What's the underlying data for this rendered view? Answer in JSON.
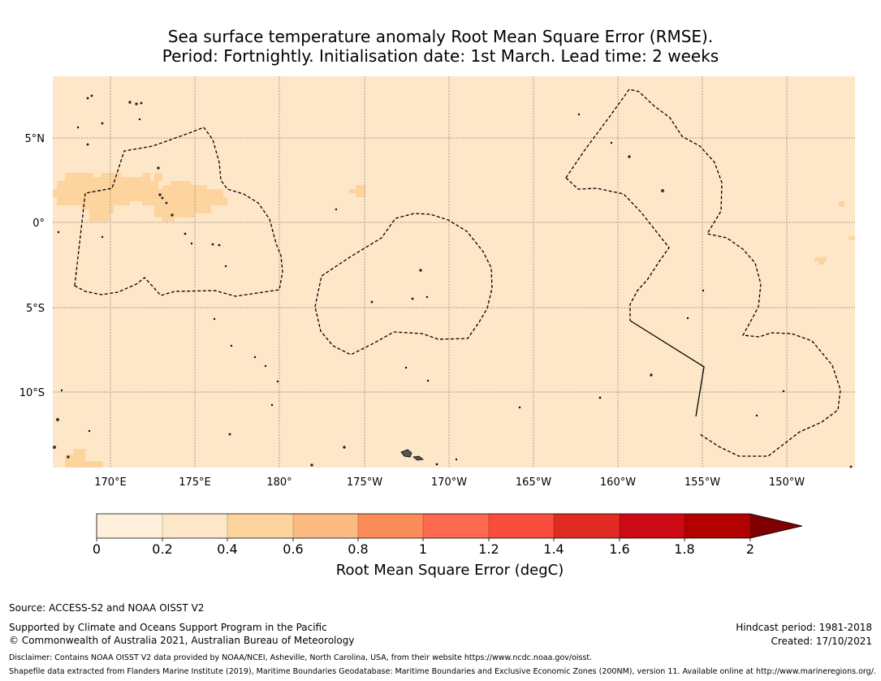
{
  "title": {
    "line1": "Sea surface temperature anomaly Root Mean Square Error (RMSE).",
    "line2": "Period: Fortnightly. Initialisation date: 1st March. Lead time: 2 weeks"
  },
  "map": {
    "background_color": "#fee7c8",
    "patch_color": "#fdd49e",
    "x_labels": [
      "170°E",
      "175°E",
      "180°",
      "175°W",
      "170°W",
      "165°W",
      "160°W",
      "155°W",
      "150°W"
    ],
    "y_labels": [
      "5°N",
      "0°",
      "5°S",
      "10°S"
    ]
  },
  "colorbar": {
    "title": "Root Mean Square Error (degC)",
    "ticks": [
      "0",
      "0.2",
      "0.4",
      "0.6",
      "0.8",
      "1",
      "1.2",
      "1.4",
      "1.6",
      "1.8",
      "2"
    ],
    "colors": [
      "#fff0dc",
      "#fee7c8",
      "#fdd49e",
      "#fdbb84",
      "#fc8d59",
      "#fd6a4f",
      "#fa4c3c",
      "#df2b21",
      "#cc0a16",
      "#b30000",
      "#7f0000"
    ]
  },
  "footer": {
    "source": "Source: ACCESS-S2 and NOAA OISST V2",
    "supported": "Supported by Climate and Oceans Support Program in the Pacific",
    "copyright": "© Commonwealth of Australia 2021, Australian Bureau of Meteorology",
    "hindcast": "Hindcast period: 1981-2018",
    "created": "Created: 17/10/2021",
    "disclaimer": "Disclaimer: Contains NOAA OISST V2 data provided by NOAA/NCEI, Asheville, North Carolina, USA, from their website https://www.ncdc.noaa.gov/oisst.",
    "shapefile": "Shapefile data extracted from Flanders Marine Institute (2019), Maritime Boundaries Geodatabase: Maritime Boundaries and Exclusive Economic Zones (200NM), version 11. Available online at http://www.marineregions.org/."
  }
}
